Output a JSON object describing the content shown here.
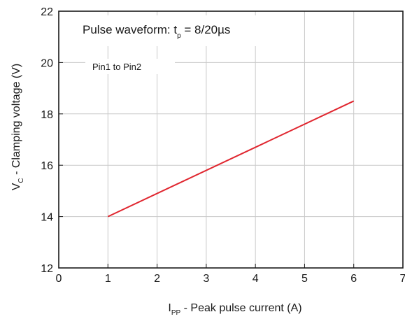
{
  "chart_data": {
    "type": "line",
    "title": {
      "main": "Pulse waveform: t",
      "sub": "p",
      "rest": " = 8/20µs"
    },
    "annotation": "Pin1 to Pin2",
    "xlabel": {
      "main": "I",
      "sub": "PP",
      "rest": " - Peak pulse current (A)"
    },
    "ylabel": {
      "main": "V",
      "sub": "C",
      "rest": " - Clamping voltage (V)"
    },
    "xlim": [
      0,
      7
    ],
    "ylim": [
      12,
      22
    ],
    "xticks": [
      0,
      1,
      2,
      3,
      4,
      5,
      6,
      7
    ],
    "yticks": [
      12,
      14,
      16,
      18,
      20,
      22
    ],
    "grid": true,
    "series": [
      {
        "color": "#e0262f",
        "x": [
          1,
          6
        ],
        "y": [
          14,
          18.5
        ]
      }
    ]
  }
}
